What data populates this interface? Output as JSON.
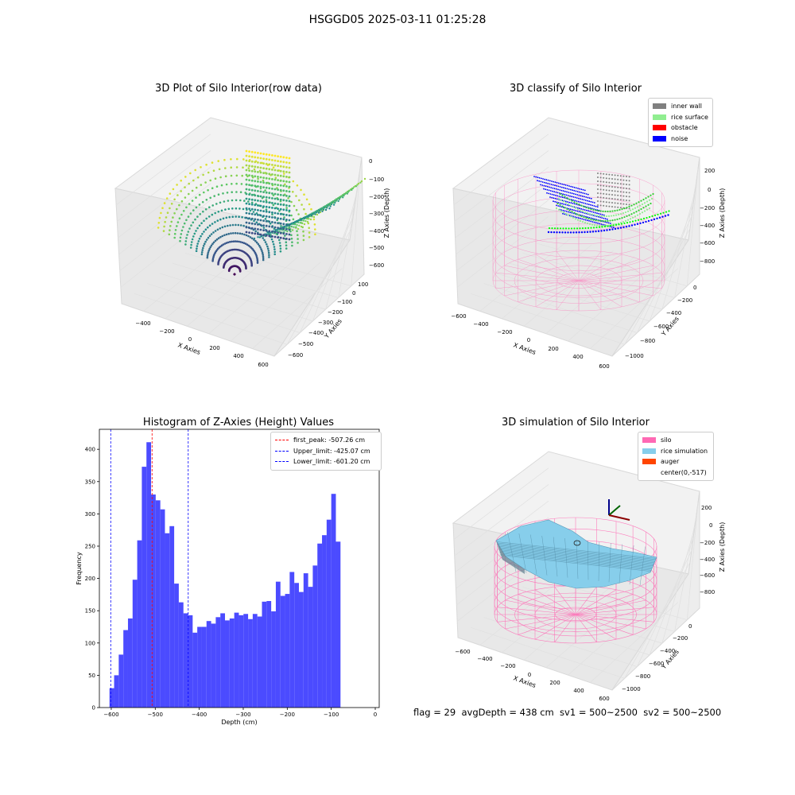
{
  "suptitle": "HSGGD05 2025-03-11 01:25:28",
  "status": "flag = 29  avgDepth = 438 cm  sv1 = 500~2500  sv2 = 500~2500",
  "colors": {
    "inner_wall": "#808080",
    "rice_surface": "#90EE90",
    "obstacle": "#FF0000",
    "noise": "#0000FF",
    "silo": "#FF69B4",
    "rice_simulation": "#87CEEB",
    "auger": "#FF4500",
    "hist_bar": "#4B4BFF"
  },
  "chart_data": [
    {
      "type": "scatter",
      "panel": "3d-raw",
      "title": "3D Plot of Silo Interior(row data)",
      "xlabel": "X Axies",
      "ylabel": "Y Axies",
      "zlabel": "Z Axies (Depth)",
      "x_ticks": [
        "−400",
        "−200",
        "0",
        "200",
        "400",
        "600"
      ],
      "y_ticks": [
        "100",
        "0",
        "−100",
        "−200",
        "−300",
        "−400",
        "−500",
        "−600"
      ],
      "z_ticks": [
        "0",
        "−100",
        "−200",
        "−300",
        "−400",
        "−500",
        "−600"
      ],
      "colormap": "viridis"
    },
    {
      "type": "scatter",
      "panel": "3d-classify",
      "title": "3D classify of Silo Interior",
      "xlabel": "X Axies",
      "ylabel": "Y Axies",
      "zlabel": "Z Axies (Depth)",
      "x_ticks": [
        "−600",
        "−400",
        "−200",
        "0",
        "200",
        "400",
        "600"
      ],
      "y_ticks": [
        "0",
        "−200",
        "−400",
        "−600",
        "−800",
        "−1000"
      ],
      "z_ticks": [
        "200",
        "0",
        "−200",
        "−400",
        "−600",
        "−800"
      ],
      "legend": [
        "inner wall",
        "rice surface",
        "obstacle",
        "noise"
      ],
      "legend_position": "top-right"
    },
    {
      "type": "bar",
      "panel": "histogram",
      "title": "Histogram of Z-Axies (Height) Values",
      "xlabel": "Depth (cm)",
      "ylabel": "Frequency",
      "xlim": [
        -627,
        9
      ],
      "ylim": [
        0,
        431
      ],
      "x_ticks": [
        -600,
        -500,
        -400,
        -300,
        -200,
        -100,
        0
      ],
      "x_tick_labels": [
        "−600",
        "−500",
        "−400",
        "−300",
        "−200",
        "−100",
        "0"
      ],
      "y_ticks": [
        0,
        50,
        100,
        150,
        200,
        250,
        300,
        350,
        400
      ],
      "bin_start": -604,
      "bin_width": 10.5,
      "values": [
        30,
        50,
        82,
        120,
        138,
        198,
        259,
        373,
        411,
        330,
        321,
        307,
        270,
        281,
        192,
        163,
        146,
        143,
        116,
        125,
        125,
        134,
        130,
        140,
        146,
        135,
        138,
        147,
        143,
        145,
        137,
        145,
        141,
        164,
        165,
        149,
        195,
        173,
        176,
        210,
        193,
        179,
        208,
        187,
        220,
        254,
        267,
        291,
        331,
        257
      ],
      "vlines": [
        {
          "x": -507.26,
          "label": "first_peak: -507.26 cm",
          "color": "#FF0000"
        },
        {
          "x": -425.07,
          "label": "Upper_limit: -425.07 cm",
          "color": "#0000FF"
        },
        {
          "x": -601.2,
          "label": "Lower_limit: -601.20 cm",
          "color": "#0000FF"
        }
      ],
      "legend_position": "top-right"
    },
    {
      "type": "surface",
      "panel": "3d-simulation",
      "title": "3D simulation of Silo Interior",
      "xlabel": "X Axies",
      "ylabel": "Y Axies",
      "zlabel": "Z Axies (Depth)",
      "x_ticks": [
        "−600",
        "−400",
        "−200",
        "0",
        "200",
        "400",
        "600"
      ],
      "y_ticks": [
        "0",
        "−200",
        "−400",
        "−600",
        "−800",
        "−1000"
      ],
      "z_ticks": [
        "200",
        "0",
        "−200",
        "−400",
        "−600",
        "−800"
      ],
      "legend": [
        "silo",
        "rice simulation",
        "auger",
        "center(0,-517)"
      ],
      "legend_position": "top-right"
    }
  ]
}
